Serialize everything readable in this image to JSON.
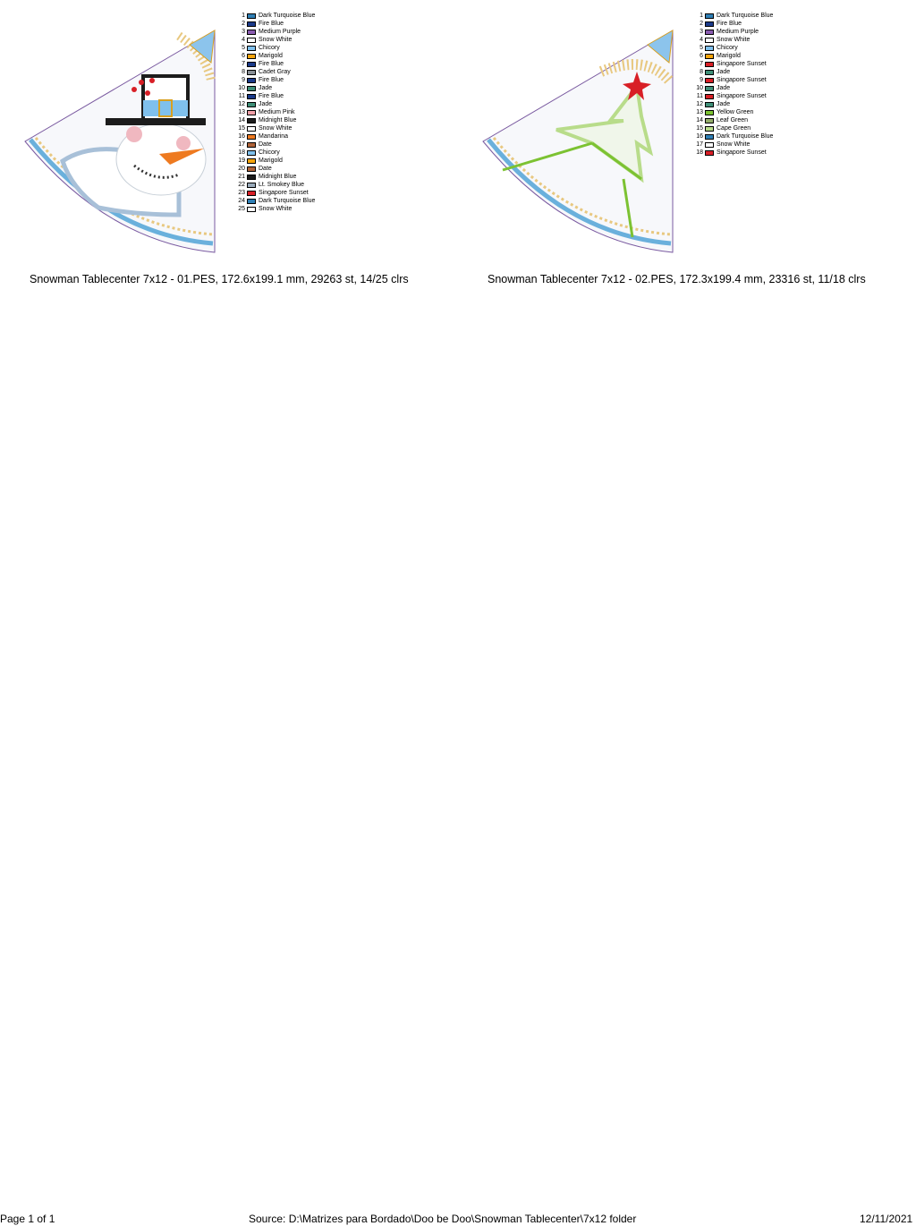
{
  "designs": [
    {
      "caption": "Snowman Tablecenter 7x12 - 01.PES, 172.6x199.1 mm, 29263 st, 14/25 clrs",
      "colors": [
        {
          "n": "1",
          "name": "Dark Turquoise Blue",
          "hex": "#2f7fb5"
        },
        {
          "n": "2",
          "name": "Fire Blue",
          "hex": "#1a3a8a"
        },
        {
          "n": "3",
          "name": "Medium Purple",
          "hex": "#8a5cb0"
        },
        {
          "n": "4",
          "name": "Snow White",
          "hex": "#ffffff"
        },
        {
          "n": "5",
          "name": "Chicory",
          "hex": "#7fc0ec"
        },
        {
          "n": "6",
          "name": "Marigold",
          "hex": "#f5a40c"
        },
        {
          "n": "7",
          "name": "Fire Blue",
          "hex": "#1a3a8a"
        },
        {
          "n": "8",
          "name": "Cadet Gray",
          "hex": "#8a9096"
        },
        {
          "n": "9",
          "name": "Fire Blue",
          "hex": "#1a3a8a"
        },
        {
          "n": "10",
          "name": "Jade",
          "hex": "#3f8f78"
        },
        {
          "n": "11",
          "name": "Fire Blue",
          "hex": "#1a3a8a"
        },
        {
          "n": "12",
          "name": "Jade",
          "hex": "#3f8f78"
        },
        {
          "n": "13",
          "name": "Medium Pink",
          "hex": "#f0a0a8"
        },
        {
          "n": "14",
          "name": "Midnight Blue",
          "hex": "#1c1c1c"
        },
        {
          "n": "15",
          "name": "Snow White",
          "hex": "#ffffff"
        },
        {
          "n": "16",
          "name": "Mandarina",
          "hex": "#ee7a20"
        },
        {
          "n": "17",
          "name": "Date",
          "hex": "#b0643a"
        },
        {
          "n": "18",
          "name": "Chicory",
          "hex": "#7fc0ec"
        },
        {
          "n": "19",
          "name": "Marigold",
          "hex": "#f5a40c"
        },
        {
          "n": "20",
          "name": "Date",
          "hex": "#b0643a"
        },
        {
          "n": "21",
          "name": "Midnight Blue",
          "hex": "#1c1c1c"
        },
        {
          "n": "22",
          "name": "Lt. Smokey Blue",
          "hex": "#9aabbb"
        },
        {
          "n": "23",
          "name": "Singapore Sunset",
          "hex": "#d81f26"
        },
        {
          "n": "24",
          "name": "Dark Turquoise Blue",
          "hex": "#2f7fb5"
        },
        {
          "n": "25",
          "name": "Snow White",
          "hex": "#ffffff"
        }
      ]
    },
    {
      "caption": "Snowman Tablecenter 7x12 - 02.PES, 172.3x199.4 mm, 23316 st, 11/18 clrs",
      "colors": [
        {
          "n": "1",
          "name": "Dark Turquoise Blue",
          "hex": "#2f7fb5"
        },
        {
          "n": "2",
          "name": "Fire Blue",
          "hex": "#1a3a8a"
        },
        {
          "n": "3",
          "name": "Medium Purple",
          "hex": "#8a5cb0"
        },
        {
          "n": "4",
          "name": "Snow White",
          "hex": "#ffffff"
        },
        {
          "n": "5",
          "name": "Chicory",
          "hex": "#7fc0ec"
        },
        {
          "n": "6",
          "name": "Marigold",
          "hex": "#f5a40c"
        },
        {
          "n": "7",
          "name": "Singapore Sunset",
          "hex": "#d81f26"
        },
        {
          "n": "8",
          "name": "Jade",
          "hex": "#3f8f78"
        },
        {
          "n": "9",
          "name": "Singapore Sunset",
          "hex": "#d81f26"
        },
        {
          "n": "10",
          "name": "Jade",
          "hex": "#3f8f78"
        },
        {
          "n": "11",
          "name": "Singapore Sunset",
          "hex": "#d81f26"
        },
        {
          "n": "12",
          "name": "Jade",
          "hex": "#3f8f78"
        },
        {
          "n": "13",
          "name": "Yellow Green",
          "hex": "#7cc232"
        },
        {
          "n": "14",
          "name": "Leaf Green",
          "hex": "#94ad6a"
        },
        {
          "n": "15",
          "name": "Cape Green",
          "hex": "#b8dc8a"
        },
        {
          "n": "16",
          "name": "Dark Turquoise Blue",
          "hex": "#2f7fb5"
        },
        {
          "n": "17",
          "name": "Snow White",
          "hex": "#ffffff"
        },
        {
          "n": "18",
          "name": "Singapore Sunset",
          "hex": "#d81f26"
        }
      ]
    }
  ],
  "footer": {
    "page": "Page 1 of 1",
    "source": "Source: D:\\Matrizes para Bordado\\Doo be Doo\\Snowman Tablecenter\\7x12 folder",
    "date": "12/11/2021"
  }
}
